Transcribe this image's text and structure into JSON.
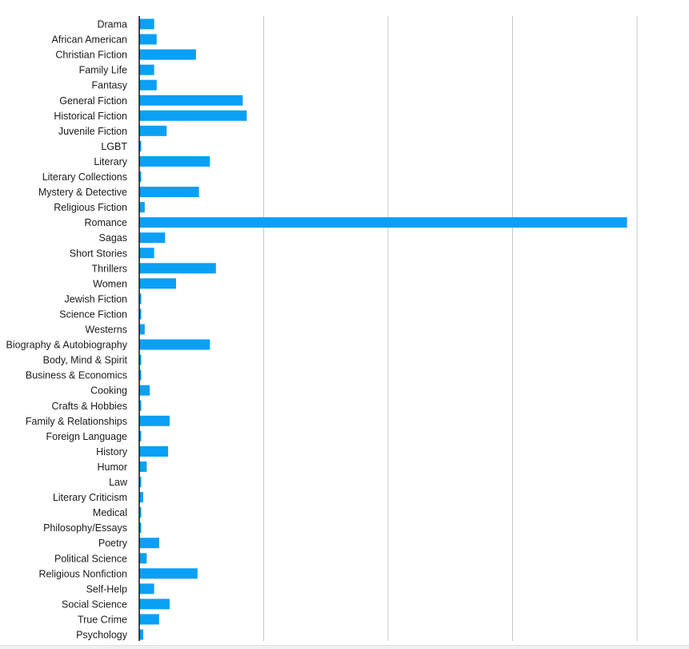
{
  "chart_data": {
    "type": "bar",
    "orientation": "horizontal",
    "bar_color": "#0aa0f5",
    "grid": true,
    "grid_color": "#c8c8c8",
    "xlim": [
      0,
      100
    ],
    "gridlines": [
      25,
      50,
      75,
      100
    ],
    "categories": [
      "Drama",
      "African American",
      "Christian Fiction",
      "Family Life",
      "Fantasy",
      "General Fiction",
      "Historical Fiction",
      "Juvenile Fiction",
      "LGBT",
      "Literary",
      "Literary Collections",
      "Mystery & Detective",
      "Religious Fiction",
      "Romance",
      "Sagas",
      "Short Stories",
      "Thrillers",
      "Women",
      "Jewish Fiction",
      "Science Fiction",
      "Westerns",
      "Biography & Autobiography",
      "Body, Mind & Spirit",
      "Business & Economics",
      "Cooking",
      "Crafts & Hobbies",
      "Family & Relationships",
      "Foreign Language",
      "History",
      "Humor",
      "Law",
      "Literary Criticism",
      "Medical",
      "Philosophy/Essays",
      "Poetry",
      "Political Science",
      "Religious Nonfiction",
      "Self-Help",
      "Social Science",
      "True Crime",
      "Psychology"
    ],
    "values": [
      3.0,
      3.5,
      11.4,
      3.0,
      3.5,
      20.8,
      21.6,
      5.5,
      0.4,
      14.2,
      0.4,
      12.0,
      1.1,
      98.0,
      5.2,
      3.0,
      15.4,
      7.4,
      0.4,
      0.4,
      1.1,
      14.2,
      0.4,
      0.4,
      2.1,
      0.4,
      6.1,
      0.4,
      5.8,
      1.5,
      0.4,
      0.8,
      0.4,
      0.4,
      4.0,
      1.5,
      11.7,
      3.0,
      6.1,
      4.0,
      0.8
    ]
  }
}
